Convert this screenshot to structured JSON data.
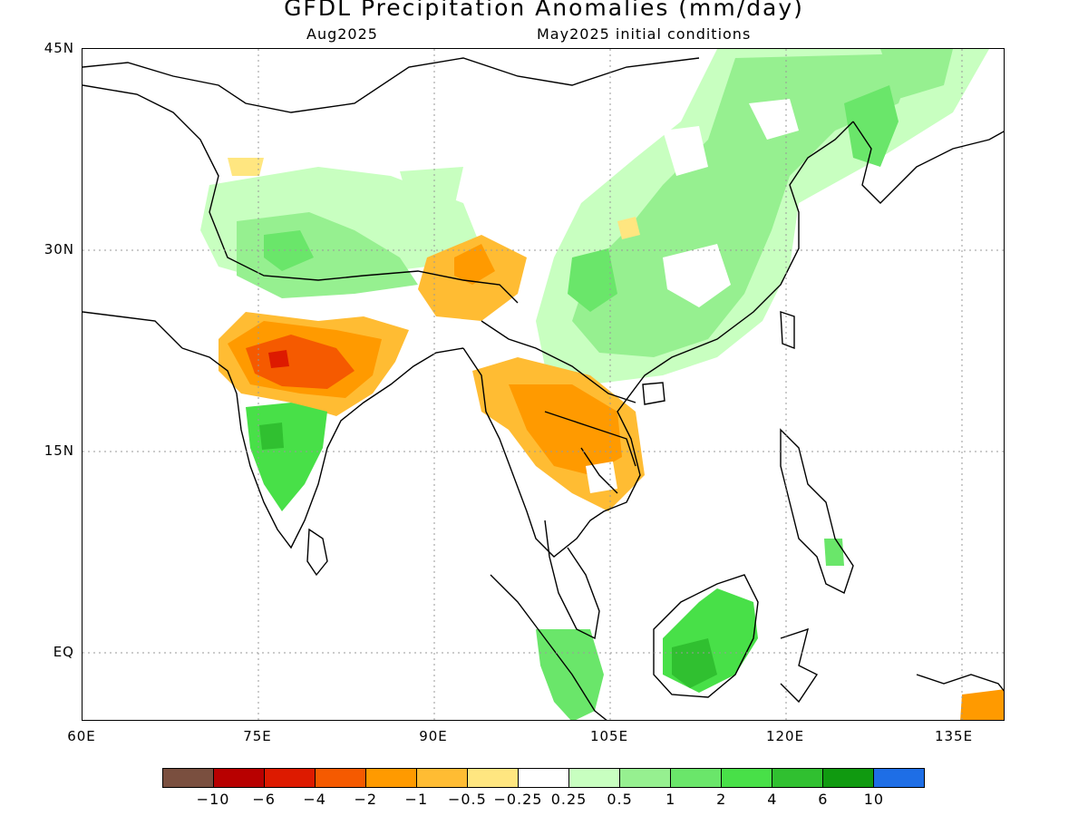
{
  "title": "GFDL Precipitation Anomalies (mm/day)",
  "subtitle_left": "Aug2025",
  "subtitle_right": "May2025 initial conditions",
  "lat_labels": [
    "45N",
    "30N",
    "15N",
    "EQ"
  ],
  "lon_labels": [
    "60E",
    "75E",
    "90E",
    "105E",
    "120E",
    "135E"
  ],
  "colorbar": {
    "colors": [
      "#7a4f3f",
      "#b80000",
      "#dd1a00",
      "#f55a00",
      "#ff9a00",
      "#ffbc33",
      "#ffe680",
      "#ffffff",
      "#c8ffc0",
      "#96f090",
      "#6ae66a",
      "#48e048",
      "#30c030",
      "#109a10",
      "#1e6ee6"
    ],
    "labels": [
      "−10",
      "−6",
      "−4",
      "−2",
      "−1",
      "−0.5",
      "−0.25",
      "0.25",
      "0.5",
      "1",
      "2",
      "4",
      "6",
      "10"
    ]
  },
  "chart_data": {
    "type": "heatmap",
    "title": "GFDL Precipitation Anomalies (mm/day)",
    "subtitle": "Aug2025 / May2025 initial conditions",
    "units": "mm/day",
    "x_range_lon": [
      60,
      140
    ],
    "y_range_lat": [
      -6,
      45
    ],
    "x_ticks": [
      "60E",
      "75E",
      "90E",
      "105E",
      "120E",
      "135E"
    ],
    "y_ticks": [
      "45N",
      "30N",
      "15N",
      "EQ"
    ],
    "grid": "dotted",
    "legend_position": "bottom",
    "contour_levels": [
      -10,
      -6,
      -4,
      -2,
      -1,
      -0.5,
      -0.25,
      0.25,
      0.5,
      1,
      2,
      4,
      6,
      10
    ],
    "regions": [
      {
        "name": "Central India",
        "anomaly": "negative",
        "level": "-4 to -6"
      },
      {
        "name": "Peninsular India",
        "anomaly": "positive",
        "level": "2 to 4"
      },
      {
        "name": "Northern India",
        "anomaly": "positive",
        "level": "1 to 2"
      },
      {
        "name": "Indochina",
        "anomaly": "negative",
        "level": "-1 to -2"
      },
      {
        "name": "Eastern China",
        "anomaly": "positive",
        "level": "0.5 to 2"
      },
      {
        "name": "Borneo",
        "anomaly": "positive",
        "level": "4 to 6"
      },
      {
        "name": "Sumatra",
        "anomaly": "positive",
        "level": "1 to 2"
      }
    ]
  }
}
